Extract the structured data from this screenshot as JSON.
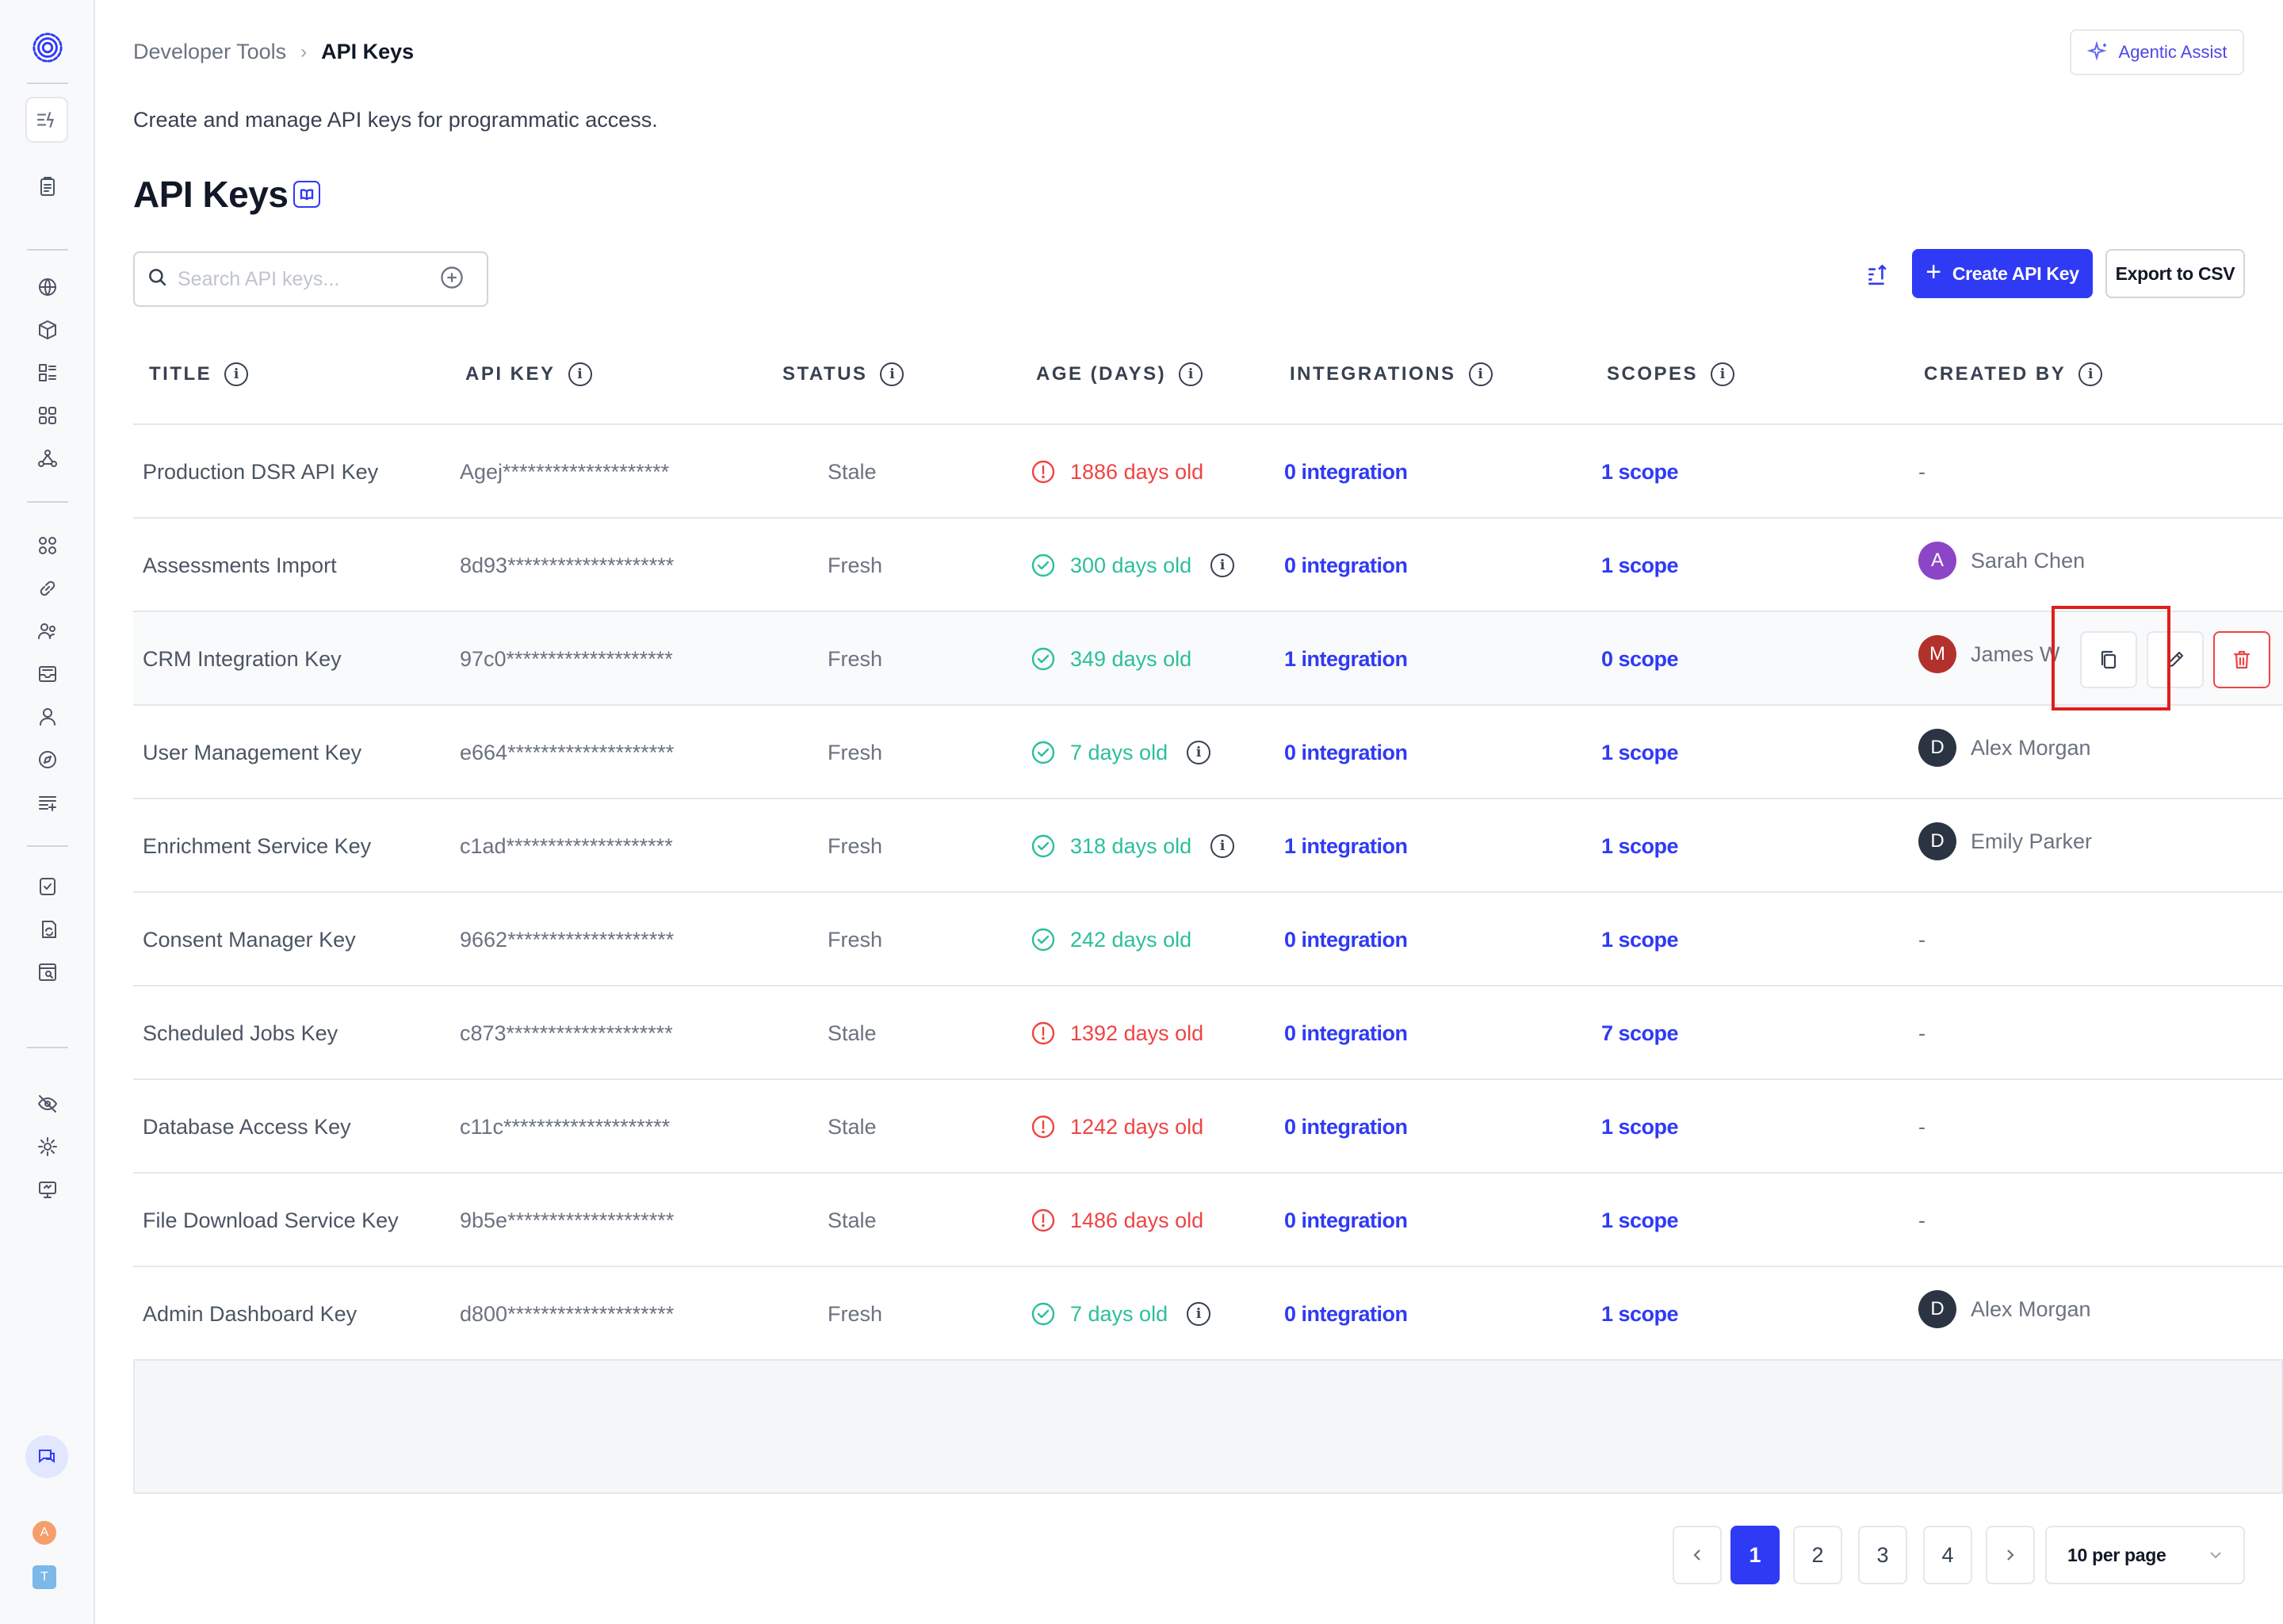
{
  "breadcrumb": {
    "parent": "Developer Tools",
    "separator": "›",
    "current": "API Keys"
  },
  "assist_button": {
    "label": "Agentic Assist"
  },
  "page": {
    "subtitle": "Create and manage API keys for programmatic access.",
    "title": "API Keys"
  },
  "search": {
    "placeholder": "Search API keys...",
    "value": ""
  },
  "toolbar": {
    "create_label": "Create API Key",
    "create_icon": "+",
    "export_label": "Export to CSV"
  },
  "table": {
    "columns": [
      {
        "label": "TITLE",
        "info": "i"
      },
      {
        "label": "API KEY",
        "info": "i"
      },
      {
        "label": "STATUS",
        "info": "i"
      },
      {
        "label": "AGE (DAYS)",
        "info": "i"
      },
      {
        "label": "INTEGRATIONS",
        "info": "i"
      },
      {
        "label": "SCOPES",
        "info": "i"
      },
      {
        "label": "CREATED BY",
        "info": "i"
      }
    ],
    "rows": [
      {
        "title": "Production DSR API Key",
        "key": "Agej********************",
        "status": "Stale",
        "age": "1886 days old",
        "integrations": "0 integration",
        "scopes": "1 scope",
        "created_by": "-",
        "age_info": ""
      },
      {
        "title": "Assessments Import",
        "key": "8d93********************",
        "status": "Fresh",
        "age": "300 days old",
        "integrations": "0 integration",
        "scopes": "1 scope",
        "created_by": "Sarah Chen",
        "avatar_letter": "A",
        "avatar_color": "#8b45c6",
        "age_info": "i"
      },
      {
        "title": "CRM Integration Key",
        "key": "97c0********************",
        "status": "Fresh",
        "age": "349 days old",
        "integrations": "1 integration",
        "scopes": "0 scope",
        "created_by": "James W",
        "avatar_letter": "M",
        "avatar_color": "#b3312c",
        "age_info": ""
      },
      {
        "title": "User Management Key",
        "key": "e664********************",
        "status": "Fresh",
        "age": "7 days old",
        "integrations": "0 integration",
        "scopes": "1 scope",
        "created_by": "Alex Morgan",
        "avatar_letter": "D",
        "avatar_color": "#2b3442",
        "age_info": "i"
      },
      {
        "title": "Enrichment Service Key",
        "key": "c1ad********************",
        "status": "Fresh",
        "age": "318 days old",
        "integrations": "1 integration",
        "scopes": "1 scope",
        "created_by": "Emily Parker",
        "avatar_letter": "D",
        "avatar_color": "#2b3442",
        "age_info": "i"
      },
      {
        "title": "Consent Manager Key",
        "key": "9662********************",
        "status": "Fresh",
        "age": "242 days old",
        "integrations": "0 integration",
        "scopes": "1 scope",
        "created_by": "-",
        "age_info": ""
      },
      {
        "title": "Scheduled Jobs Key",
        "key": "c873********************",
        "status": "Stale",
        "age": "1392 days old",
        "integrations": "0 integration",
        "scopes": "7 scope",
        "created_by": "-",
        "age_info": ""
      },
      {
        "title": "Database Access Key",
        "key": "c11c********************",
        "status": "Stale",
        "age": "1242 days old",
        "integrations": "0 integration",
        "scopes": "1 scope",
        "created_by": "-",
        "age_info": ""
      },
      {
        "title": "File Download Service Key",
        "key": "9b5e********************",
        "status": "Stale",
        "age": "1486 days old",
        "integrations": "0 integration",
        "scopes": "1 scope",
        "created_by": "-",
        "age_info": ""
      },
      {
        "title": "Admin Dashboard Key",
        "key": "d800********************",
        "status": "Fresh",
        "age": "7 days old",
        "integrations": "0 integration",
        "scopes": "1 scope",
        "created_by": "Alex Morgan",
        "avatar_letter": "D",
        "avatar_color": "#2b3442",
        "age_info": "i"
      }
    ]
  },
  "pagination": {
    "pages": [
      "1",
      "2",
      "3",
      "4"
    ],
    "current": "1",
    "per_page": "10 per page"
  },
  "sidebar": {
    "user_avatars": [
      {
        "letter": "A",
        "color": "#f59e6b"
      },
      {
        "letter": "T",
        "color": "#7cb8e8"
      }
    ]
  },
  "colors": {
    "accent": "#2f3af5",
    "stale": "#ef4444",
    "fresh": "#2bbf9a"
  }
}
